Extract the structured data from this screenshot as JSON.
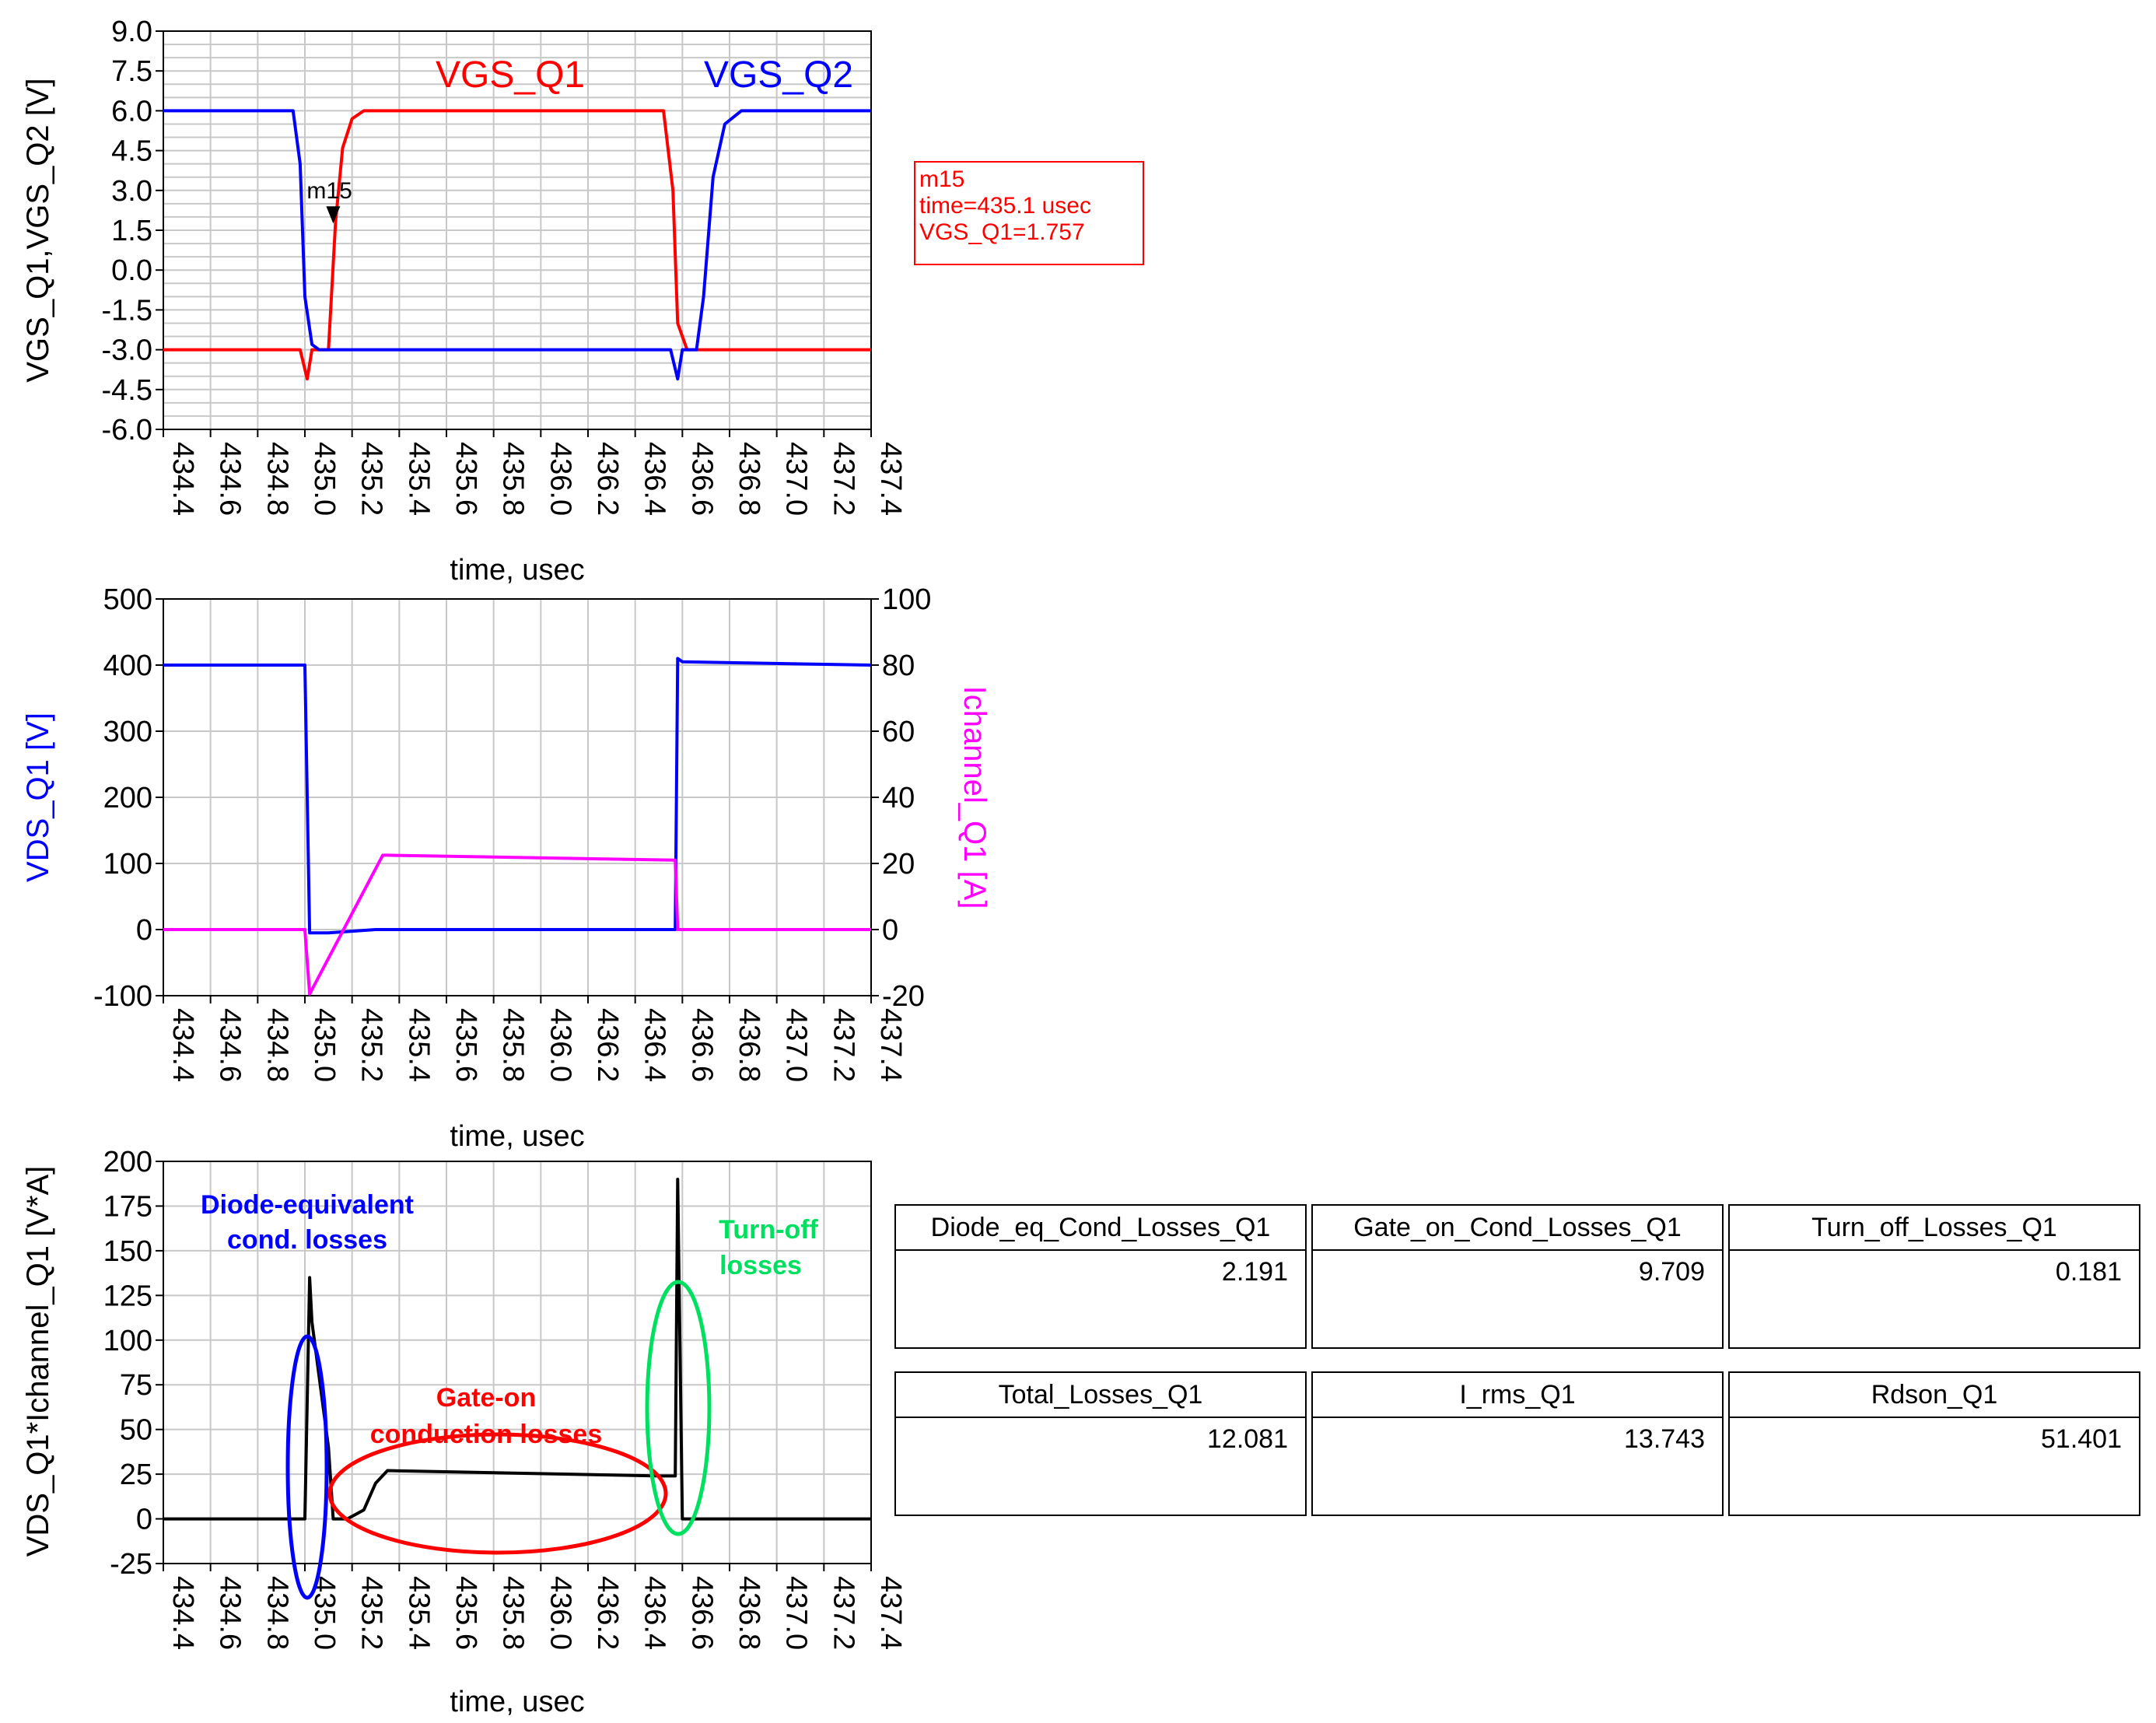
{
  "chart_data": [
    {
      "type": "line",
      "xlabel": "time, usec",
      "ylabel": "VGS_Q1,VGS_Q2 [V]",
      "xlim": [
        434.4,
        437.4
      ],
      "ylim": [
        -6.0,
        9.0
      ],
      "x_ticks": [
        "434.4",
        "434.6",
        "434.8",
        "435.0",
        "435.2",
        "435.4",
        "435.6",
        "435.8",
        "436.0",
        "436.2",
        "436.4",
        "436.6",
        "436.8",
        "437.0",
        "437.2",
        "437.4"
      ],
      "y_ticks": [
        "9.0",
        "7.5",
        "6.0",
        "4.5",
        "3.0",
        "1.5",
        "0.0",
        "-1.5",
        "-3.0",
        "-4.5",
        "-6.0"
      ],
      "grid": true,
      "series": [
        {
          "name": "VGS_Q1",
          "color": "#ff0000",
          "x": [
            434.4,
            434.98,
            435.01,
            435.03,
            435.06,
            435.1,
            435.13,
            435.16,
            435.2,
            435.25,
            436.4,
            436.52,
            436.56,
            436.58,
            436.62,
            437.4
          ],
          "y": [
            -3.0,
            -3.0,
            -4.1,
            -3.0,
            -3.0,
            -3.0,
            1.8,
            4.6,
            5.7,
            6.0,
            6.0,
            6.0,
            3.0,
            -2.0,
            -3.0,
            -3.0
          ]
        },
        {
          "name": "VGS_Q2",
          "color": "#0000ff",
          "x": [
            434.4,
            434.95,
            434.98,
            435.0,
            435.03,
            435.06,
            435.1,
            436.55,
            436.58,
            436.6,
            436.66,
            436.69,
            436.73,
            436.78,
            436.85,
            437.4
          ],
          "y": [
            6.0,
            6.0,
            4.0,
            -1.0,
            -2.8,
            -3.0,
            -3.0,
            -3.0,
            -4.1,
            -3.0,
            -3.0,
            -1.0,
            3.5,
            5.5,
            6.0,
            6.0
          ]
        }
      ],
      "marker": {
        "name": "m15",
        "lines": [
          "m15",
          "time=435.1 usec",
          "VGS_Q1=1.757"
        ],
        "x": 435.12,
        "y": 1.757
      }
    },
    {
      "type": "line",
      "xlabel": "time, usec",
      "ylabel": "VDS_Q1 [V]",
      "ylabel_right": "Ichannel_Q1 [A]",
      "xlim": [
        434.4,
        437.4
      ],
      "ylim": [
        -100,
        500
      ],
      "ylim_right": [
        -20,
        100
      ],
      "x_ticks": [
        "434.4",
        "434.6",
        "434.8",
        "435.0",
        "435.2",
        "435.4",
        "435.6",
        "435.8",
        "436.0",
        "436.2",
        "436.4",
        "436.6",
        "436.8",
        "437.0",
        "437.2",
        "437.4"
      ],
      "y_ticks": [
        "500",
        "400",
        "300",
        "200",
        "100",
        "0",
        "-100"
      ],
      "y_ticks_right": [
        "100",
        "80",
        "60",
        "40",
        "20",
        "0",
        "-20"
      ],
      "grid": true,
      "series": [
        {
          "name": "VDS_Q1",
          "color": "#0000ff",
          "axis": "left",
          "x": [
            434.4,
            435.0,
            435.02,
            435.1,
            435.3,
            436.5,
            436.57,
            436.58,
            436.6,
            437.4
          ],
          "y": [
            400,
            400,
            -5,
            -5,
            0,
            0,
            0,
            410,
            405,
            400
          ]
        },
        {
          "name": "Ichannel_Q1",
          "color": "#ff00ff",
          "axis": "right",
          "x": [
            434.4,
            435.0,
            435.02,
            435.33,
            435.35,
            436.57,
            436.58,
            437.4
          ],
          "y": [
            0,
            0,
            -19.5,
            22.5,
            22.5,
            21.0,
            0,
            0
          ]
        }
      ]
    },
    {
      "type": "line",
      "xlabel": "time, usec",
      "ylabel": "VDS_Q1*Ichannel_Q1 [V*A]",
      "xlim": [
        434.4,
        437.4
      ],
      "ylim": [
        -25,
        200
      ],
      "x_ticks": [
        "434.4",
        "434.6",
        "434.8",
        "435.0",
        "435.2",
        "435.4",
        "435.6",
        "435.8",
        "436.0",
        "436.2",
        "436.4",
        "436.6",
        "436.8",
        "437.0",
        "437.2",
        "437.4"
      ],
      "y_ticks": [
        "200",
        "175",
        "150",
        "125",
        "100",
        "75",
        "50",
        "25",
        "0",
        "-25"
      ],
      "grid": true,
      "series": [
        {
          "name": "",
          "color": "#000000",
          "x": [
            434.4,
            435.0,
            435.02,
            435.03,
            435.1,
            435.12,
            435.18,
            435.25,
            435.3,
            435.35,
            436.5,
            436.57,
            436.58,
            436.6,
            437.4
          ],
          "y": [
            0,
            0,
            135,
            110,
            40,
            0,
            0,
            5,
            20,
            27,
            24,
            24,
            190,
            0,
            0
          ]
        }
      ],
      "annotations": [
        {
          "lines": [
            "Diode-equivalent",
            "cond. losses"
          ],
          "color": "#0000ff"
        },
        {
          "lines": [
            "Gate-on",
            "conduction losses"
          ],
          "color": "#ff0000"
        },
        {
          "lines": [
            "Turn-off",
            "losses"
          ],
          "color": "#00e060"
        }
      ]
    }
  ],
  "tables": {
    "row1": [
      {
        "header": "Diode_eq_Cond_Losses_Q1",
        "value": "2.191"
      },
      {
        "header": "Gate_on_Cond_Losses_Q1",
        "value": "9.709"
      },
      {
        "header": "Turn_off_Losses_Q1",
        "value": "0.181"
      }
    ],
    "row2": [
      {
        "header": "Total_Losses_Q1",
        "value": "12.081"
      },
      {
        "header": "I_rms_Q1",
        "value": "13.743"
      },
      {
        "header": "Rdson_Q1",
        "value": "51.401"
      }
    ]
  }
}
